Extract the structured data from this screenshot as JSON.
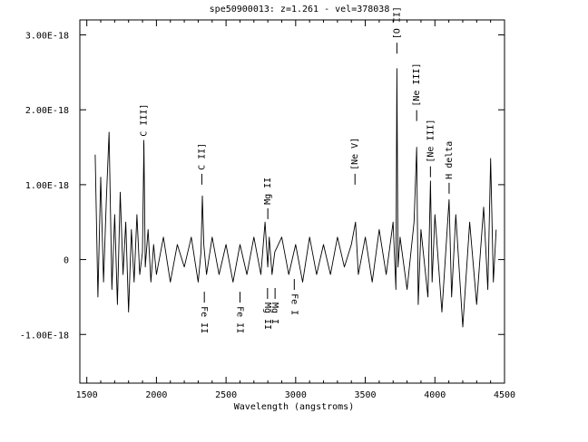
{
  "chart_data": {
    "type": "line",
    "title": "spe50900013: z=1.261 - vel=378038",
    "xlabel": "Wavelength (angstroms)",
    "ylabel": "",
    "xlim": [
      1450,
      4500
    ],
    "ylim": [
      -1.65e-18,
      3.2e-18
    ],
    "x_ticks": [
      1500,
      2000,
      2500,
      3000,
      3500,
      4000,
      4500
    ],
    "x_tick_labels": [
      "1500",
      "2000",
      "2500",
      "3000",
      "3500",
      "4000",
      "4500"
    ],
    "y_ticks": [
      -1e-18,
      0,
      1e-18,
      2e-18,
      3e-18
    ],
    "y_tick_labels": [
      "-1.00E-18",
      "0",
      "1.00E-18",
      "2.00E-18",
      "3.00E-18"
    ],
    "series": [
      {
        "x": [
          1560,
          1580,
          1600,
          1620,
          1640,
          1660,
          1680,
          1700,
          1720,
          1740,
          1760,
          1780,
          1800,
          1820,
          1840,
          1860,
          1880,
          1900,
          1910,
          1920,
          1940,
          1960,
          1980,
          2000,
          2050,
          2100,
          2150,
          2200,
          2250,
          2300,
          2320,
          2330,
          2340,
          2360,
          2400,
          2450,
          2500,
          2550,
          2600,
          2650,
          2700,
          2750,
          2780,
          2800,
          2810,
          2830,
          2850,
          2900,
          2950,
          3000,
          3050,
          3100,
          3150,
          3200,
          3250,
          3300,
          3350,
          3400,
          3430,
          3450,
          3500,
          3550,
          3600,
          3650,
          3700,
          3720,
          3727,
          3735,
          3750,
          3800,
          3850,
          3869,
          3880,
          3900,
          3950,
          3968,
          3980,
          4000,
          4050,
          4102,
          4120,
          4150,
          4200,
          4250,
          4300,
          4350,
          4380,
          4400,
          4420,
          4440
        ],
        "y": [
          1.4e-18,
          -5e-19,
          1.1e-18,
          -3e-19,
          8e-19,
          1.7e-18,
          -4e-19,
          6e-19,
          -6e-19,
          9e-19,
          -2e-19,
          5e-19,
          -7e-19,
          4e-19,
          -3e-19,
          6e-19,
          -2e-19,
          1e-19,
          1.55e-18,
          -1e-19,
          4e-19,
          -3e-19,
          2e-19,
          -2e-19,
          3e-19,
          -3e-19,
          2e-19,
          -1e-19,
          3e-19,
          -3e-19,
          1e-19,
          8.5e-19,
          2e-19,
          -2e-19,
          3e-19,
          -2e-19,
          2e-19,
          -3e-19,
          2e-19,
          -2e-19,
          3e-19,
          -2e-19,
          5e-19,
          -1e-19,
          3e-19,
          -2e-19,
          1e-19,
          3e-19,
          -2e-19,
          2e-19,
          -3e-19,
          3e-19,
          -2e-19,
          2e-19,
          -2e-19,
          3e-19,
          -1e-19,
          2e-19,
          5e-19,
          -2e-19,
          3e-19,
          -3e-19,
          4e-19,
          -2e-19,
          5e-19,
          -4e-19,
          2.55e-18,
          -1e-19,
          3e-19,
          -4e-19,
          5e-19,
          1.5e-18,
          -6e-19,
          4e-19,
          -5e-19,
          1.05e-18,
          -3e-19,
          6e-19,
          -7e-19,
          8e-19,
          -5e-19,
          6e-19,
          -9e-19,
          5e-19,
          -6e-19,
          7e-19,
          -4e-19,
          1.35e-18,
          -3e-19,
          4e-19
        ],
        "color": "#000000"
      }
    ],
    "annotations": [
      {
        "label": "C III]",
        "x": 1909,
        "side": "above",
        "y": 1.45e-18
      },
      {
        "label": "C II]",
        "x": 2326,
        "side": "above",
        "y": 1e-18
      },
      {
        "label": "Fe II",
        "x": 2344,
        "side": "below",
        "y": -4.3e-19
      },
      {
        "label": "Fe II",
        "x": 2600,
        "side": "below",
        "y": -4.3e-19
      },
      {
        "label": "Mg II",
        "x": 2800,
        "side": "above",
        "y": 5.4e-19
      },
      {
        "label": "Mg II",
        "x": 2798,
        "side": "below",
        "y": -3.8e-19
      },
      {
        "label": "Mg I",
        "x": 2852,
        "side": "below",
        "y": -3.8e-19
      },
      {
        "label": "Fe I",
        "x": 2990,
        "side": "below",
        "y": -2.6e-19
      },
      {
        "label": "[Ne V]",
        "x": 3426,
        "side": "above",
        "y": 1e-18
      },
      {
        "label": "[O II]",
        "x": 3727,
        "side": "above",
        "y": 2.75e-18
      },
      {
        "label": "[Ne III]",
        "x": 3869,
        "side": "above",
        "y": 1.85e-18
      },
      {
        "label": "[Ne III]",
        "x": 3968,
        "side": "above",
        "y": 1.1e-18
      },
      {
        "label": "H delta",
        "x": 4102,
        "side": "above",
        "y": 8.8e-19
      }
    ],
    "grid": false,
    "legend": "none"
  }
}
